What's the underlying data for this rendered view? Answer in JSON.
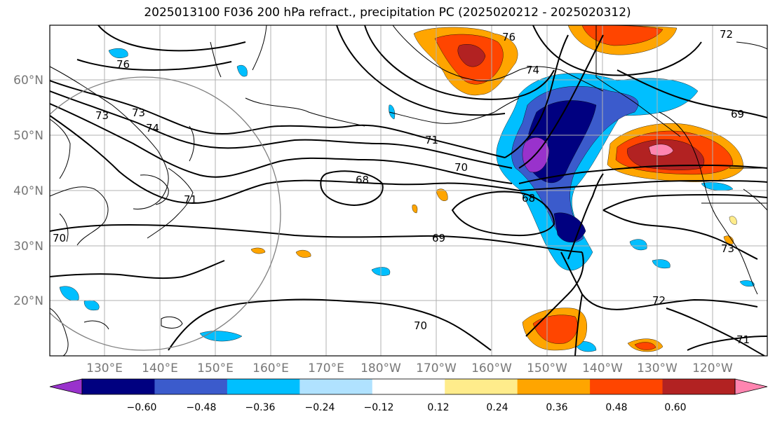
{
  "title": "2025013100 F036 200 hPa refract., precipitation PC (2025020212 - 2025020312)",
  "lat_labels": [
    "60°N",
    "50°N",
    "40°N",
    "30°N",
    "20°N"
  ],
  "lon_labels": [
    "130°E",
    "140°E",
    "150°E",
    "160°E",
    "170°E",
    "180°W",
    "170°W",
    "160°W",
    "150°W",
    "140°W",
    "130°W",
    "120°W"
  ],
  "contour_labels": [
    "76",
    "76",
    "74",
    "73",
    "74",
    "73",
    "71",
    "70",
    "68",
    "68",
    "69",
    "72",
    "70",
    "69",
    "71",
    "73",
    "72",
    "70",
    "71"
  ],
  "colorbar": {
    "tick_labels": [
      "−0.60",
      "−0.48",
      "−0.36",
      "−0.24",
      "−0.12",
      "0.12",
      "0.24",
      "0.36",
      "0.48",
      "0.60"
    ],
    "colors": [
      "#9932cc",
      "#000080",
      "#3b5bcc",
      "#00bfff",
      "#b0e2ff",
      "#ffffff",
      "#ffec8b",
      "#ffa500",
      "#ff4500",
      "#b22222",
      "#ff85b0"
    ]
  }
}
